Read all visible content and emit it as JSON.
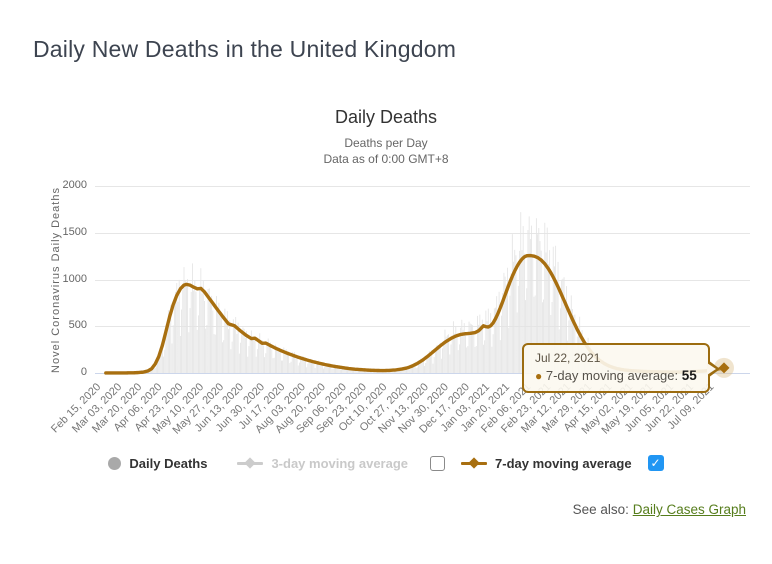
{
  "page": {
    "title": "Daily New Deaths in the United Kingdom",
    "see_also": {
      "label": "See also:",
      "link_text": "Daily Cases Graph",
      "link_color": "#567d1c"
    }
  },
  "chart": {
    "title": "Daily Deaths",
    "subtitle_line1": "Deaths per Day",
    "subtitle_line2": "Data as of 0:00 GMT+8",
    "y_axis_title": "Novel Coronavirus Daily Deaths"
  },
  "tooltip": {
    "date": "Jul 22, 2021",
    "bullet": "●",
    "series_label": "7-day moving average:",
    "value": "55",
    "border_color": "#9c6c10"
  },
  "legend": {
    "items": [
      {
        "label": "Daily Deaths",
        "marker": "circle",
        "marker_color": "#a9a9a9",
        "text_color": "#333333",
        "checkbox": null
      },
      {
        "label": "3-day moving average",
        "marker": "line-diamond",
        "marker_color": "#cccccc",
        "text_color": "#c9c9c9",
        "checkbox": "unchecked"
      },
      {
        "label": "7-day moving average",
        "marker": "line-diamond",
        "marker_color": "#a86f10",
        "text_color": "#333333",
        "checkbox": "checked"
      }
    ],
    "checkbox_checked_color": "#2196f3",
    "checkmark": "✓"
  },
  "chart_data": {
    "type": "combo",
    "title": "Daily Deaths",
    "xlabel": "",
    "ylabel": "Novel Coronavirus Daily Deaths",
    "ylim": [
      0,
      2000
    ],
    "y_ticks": [
      0,
      500,
      1000,
      1500,
      2000
    ],
    "grid": true,
    "x_labels": [
      "Feb 15, 2020",
      "Mar 03, 2020",
      "Mar 20, 2020",
      "Apr 06, 2020",
      "Apr 23, 2020",
      "May 10, 2020",
      "May 27, 2020",
      "Jun 13, 2020",
      "Jun 30, 2020",
      "Jul 17, 2020",
      "Aug 03, 2020",
      "Aug 20, 2020",
      "Sep 06, 2020",
      "Sep 23, 2020",
      "Oct 10, 2020",
      "Oct 27, 2020",
      "Nov 13, 2020",
      "Nov 30, 2020",
      "Dec 17, 2020",
      "Jan 03, 2021",
      "Jan 20, 2021",
      "Feb 06, 2021",
      "Feb 23, 2021",
      "Mar 12, 2021",
      "Mar 29, 2021",
      "Apr 15, 2021",
      "May 02, 2021",
      "May 19, 2021",
      "Jun 05, 2021",
      "Jun 22, 2021",
      "Jul 09, 2021"
    ],
    "x_label_interval_days": 17,
    "start_date": "Feb 15, 2020",
    "end_date": "Jul 22, 2021",
    "total_days": 523,
    "axis_line_color": "#ccd6eb",
    "gridline_color": "#e6e6e6",
    "series": [
      {
        "name": "Daily Deaths",
        "type": "bar",
        "color": "#e4e4e4",
        "synthesis_note": "daily bars estimated as 7d-avg times weekday pattern with noise",
        "synthesis": {
          "weekday_pattern": [
            1.1,
            0.55,
            0.72,
            1.16,
            1.22,
            1.18,
            1.08
          ],
          "noise_amp": 0.13,
          "noise_freq": 2.81,
          "base_scale": 0.92,
          "boost_from_day": 288,
          "boost_scale": 1.05
        }
      },
      {
        "name": "3-day moving average",
        "type": "line",
        "color": "#cccccc",
        "visible": false
      },
      {
        "name": "7-day moving average",
        "type": "line",
        "color": "#a86f10",
        "visible": true,
        "points_day_value": [
          [
            0,
            0
          ],
          [
            26,
            1
          ],
          [
            34,
            3
          ],
          [
            40,
            9
          ],
          [
            44,
            22
          ],
          [
            47,
            45
          ],
          [
            50,
            95
          ],
          [
            53,
            175
          ],
          [
            56,
            295
          ],
          [
            59,
            445
          ],
          [
            62,
            600
          ],
          [
            65,
            730
          ],
          [
            68,
            830
          ],
          [
            71,
            900
          ],
          [
            74,
            940
          ],
          [
            76,
            948
          ],
          [
            79,
            940
          ],
          [
            82,
            918
          ],
          [
            85,
            901
          ],
          [
            88,
            905
          ],
          [
            91,
            868
          ],
          [
            95,
            798
          ],
          [
            99,
            728
          ],
          [
            103,
            658
          ],
          [
            107,
            590
          ],
          [
            111,
            526
          ],
          [
            116,
            505
          ],
          [
            121,
            450
          ],
          [
            126,
            400
          ],
          [
            130,
            368
          ],
          [
            133,
            372
          ],
          [
            136,
            345
          ],
          [
            139,
            318
          ],
          [
            142,
            320
          ],
          [
            146,
            292
          ],
          [
            151,
            260
          ],
          [
            156,
            232
          ],
          [
            161,
            206
          ],
          [
            166,
            182
          ],
          [
            171,
            160
          ],
          [
            176,
            140
          ],
          [
            181,
            122
          ],
          [
            186,
            106
          ],
          [
            191,
            91
          ],
          [
            196,
            78
          ],
          [
            201,
            67
          ],
          [
            206,
            57
          ],
          [
            211,
            48
          ],
          [
            216,
            41
          ],
          [
            222,
            35
          ],
          [
            228,
            30
          ],
          [
            234,
            27
          ],
          [
            240,
            26
          ],
          [
            245,
            28
          ],
          [
            250,
            33
          ],
          [
            255,
            42
          ],
          [
            260,
            56
          ],
          [
            264,
            76
          ],
          [
            268,
            102
          ],
          [
            272,
            134
          ],
          [
            276,
            172
          ],
          [
            280,
            214
          ],
          [
            284,
            258
          ],
          [
            288,
            300
          ],
          [
            292,
            338
          ],
          [
            296,
            370
          ],
          [
            300,
            395
          ],
          [
            304,
            412
          ],
          [
            308,
            420
          ],
          [
            312,
            424
          ],
          [
            316,
            432
          ],
          [
            319,
            452
          ],
          [
            321,
            478
          ],
          [
            323,
            505
          ],
          [
            325,
            495
          ],
          [
            327,
            492
          ],
          [
            329,
            505
          ],
          [
            331,
            535
          ],
          [
            333,
            580
          ],
          [
            335,
            635
          ],
          [
            337,
            698
          ],
          [
            339,
            765
          ],
          [
            341,
            835
          ],
          [
            343,
            905
          ],
          [
            345,
            972
          ],
          [
            347,
            1035
          ],
          [
            349,
            1092
          ],
          [
            351,
            1142
          ],
          [
            353,
            1184
          ],
          [
            355,
            1218
          ],
          [
            357,
            1242
          ],
          [
            359,
            1254
          ],
          [
            362,
            1256
          ],
          [
            365,
            1250
          ],
          [
            368,
            1235
          ],
          [
            371,
            1208
          ],
          [
            374,
            1168
          ],
          [
            377,
            1115
          ],
          [
            380,
            1050
          ],
          [
            383,
            975
          ],
          [
            386,
            893
          ],
          [
            389,
            806
          ],
          [
            392,
            718
          ],
          [
            395,
            630
          ],
          [
            398,
            545
          ],
          [
            401,
            465
          ],
          [
            404,
            392
          ],
          [
            407,
            326
          ],
          [
            410,
            268
          ],
          [
            413,
            218
          ],
          [
            416,
            176
          ],
          [
            419,
            141
          ],
          [
            422,
            113
          ],
          [
            425,
            90
          ],
          [
            428,
            72
          ],
          [
            431,
            58
          ],
          [
            434,
            47
          ],
          [
            437,
            39
          ],
          [
            440,
            33
          ],
          [
            444,
            27
          ],
          [
            448,
            23
          ],
          [
            452,
            20
          ],
          [
            456,
            17
          ],
          [
            460,
            15
          ],
          [
            465,
            13
          ],
          [
            470,
            12
          ],
          [
            475,
            11
          ],
          [
            480,
            10
          ],
          [
            485,
            10
          ],
          [
            490,
            11
          ],
          [
            495,
            13
          ],
          [
            500,
            16
          ],
          [
            504,
            19
          ],
          [
            508,
            23
          ],
          [
            512,
            28
          ],
          [
            515,
            33
          ],
          [
            518,
            40
          ],
          [
            521,
            48
          ],
          [
            523,
            55
          ]
        ]
      }
    ],
    "last_point": {
      "date": "Jul 22, 2021",
      "series": "7-day moving average",
      "value": 55
    },
    "marker": {
      "shape": "diamond",
      "color": "#a86f10",
      "halo_color": "#dec492"
    }
  }
}
